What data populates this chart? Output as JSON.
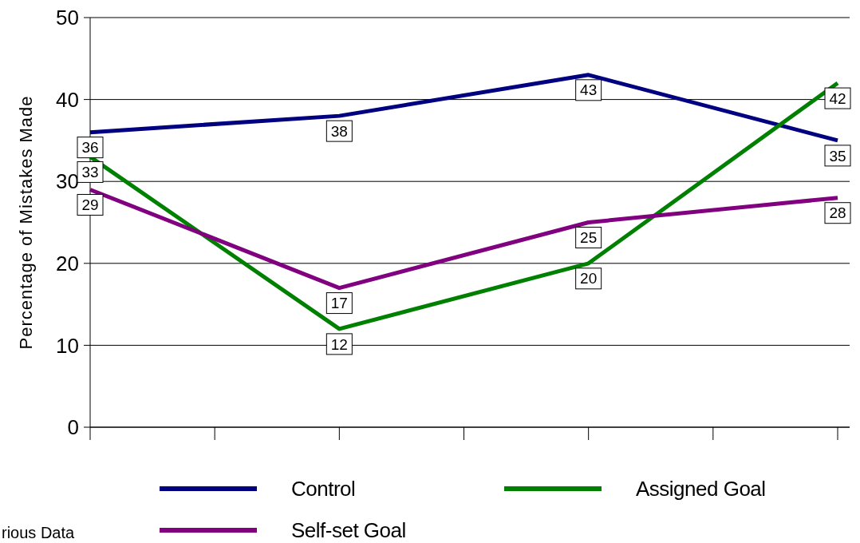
{
  "chart_data": {
    "type": "line",
    "ylabel": "Percentage of Mistakes Made",
    "categories": [
      null,
      null,
      null,
      null
    ],
    "ylim": [
      0,
      50
    ],
    "yticks": [
      0,
      10,
      20,
      30,
      40,
      50
    ],
    "grid": "y",
    "legend": "bottom",
    "data_labels": true,
    "marker": "none",
    "line_style": "solid",
    "series": [
      {
        "name": "Control",
        "color": "#000080",
        "values": [
          36,
          38,
          43,
          35
        ]
      },
      {
        "name": "Assigned  Goal",
        "color": "#008000",
        "values": [
          33,
          12,
          20,
          42
        ]
      },
      {
        "name": "Self-set  Goal",
        "color": "#800080",
        "values": [
          29,
          17,
          25,
          28
        ]
      }
    ],
    "annotations": [
      "rious Data"
    ]
  }
}
